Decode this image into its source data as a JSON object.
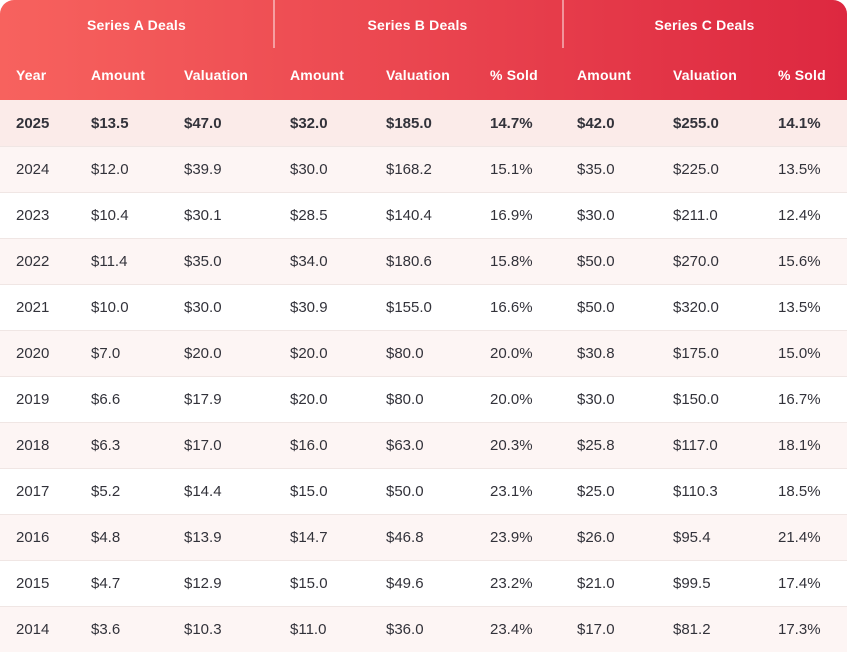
{
  "table": {
    "groups": [
      {
        "label": "Series A Deals"
      },
      {
        "label": "Series B Deals"
      },
      {
        "label": "Series C Deals"
      }
    ],
    "columns": [
      "Year",
      "Amount",
      "Valuation",
      "Amount",
      "Valuation",
      "% Sold",
      "Amount",
      "Valuation",
      "% Sold"
    ],
    "rows": [
      {
        "year": "2025",
        "highlighted": true,
        "cells": [
          "$13.5",
          "$47.0",
          "$32.0",
          "$185.0",
          "14.7%",
          "$42.0",
          "$255.0",
          "14.1%"
        ]
      },
      {
        "year": "2024",
        "highlighted": false,
        "cells": [
          "$12.0",
          "$39.9",
          "$30.0",
          "$168.2",
          "15.1%",
          "$35.0",
          "$225.0",
          "13.5%"
        ]
      },
      {
        "year": "2023",
        "highlighted": false,
        "cells": [
          "$10.4",
          "$30.1",
          "$28.5",
          "$140.4",
          "16.9%",
          "$30.0",
          "$211.0",
          "12.4%"
        ]
      },
      {
        "year": "2022",
        "highlighted": false,
        "cells": [
          "$11.4",
          "$35.0",
          "$34.0",
          "$180.6",
          "15.8%",
          "$50.0",
          "$270.0",
          "15.6%"
        ]
      },
      {
        "year": "2021",
        "highlighted": false,
        "cells": [
          "$10.0",
          "$30.0",
          "$30.9",
          "$155.0",
          "16.6%",
          "$50.0",
          "$320.0",
          "13.5%"
        ]
      },
      {
        "year": "2020",
        "highlighted": false,
        "cells": [
          "$7.0",
          "$20.0",
          "$20.0",
          "$80.0",
          "20.0%",
          "$30.8",
          "$175.0",
          "15.0%"
        ]
      },
      {
        "year": "2019",
        "highlighted": false,
        "cells": [
          "$6.6",
          "$17.9",
          "$20.0",
          "$80.0",
          "20.0%",
          "$30.0",
          "$150.0",
          "16.7%"
        ]
      },
      {
        "year": "2018",
        "highlighted": false,
        "cells": [
          "$6.3",
          "$17.0",
          "$16.0",
          "$63.0",
          "20.3%",
          "$25.8",
          "$117.0",
          "18.1%"
        ]
      },
      {
        "year": "2017",
        "highlighted": false,
        "cells": [
          "$5.2",
          "$14.4",
          "$15.0",
          "$50.0",
          "23.1%",
          "$25.0",
          "$110.3",
          "18.5%"
        ]
      },
      {
        "year": "2016",
        "highlighted": false,
        "cells": [
          "$4.8",
          "$13.9",
          "$14.7",
          "$46.8",
          "23.9%",
          "$26.0",
          "$95.4",
          "21.4%"
        ]
      },
      {
        "year": "2015",
        "highlighted": false,
        "cells": [
          "$4.7",
          "$12.9",
          "$15.0",
          "$49.6",
          "23.2%",
          "$21.0",
          "$99.5",
          "17.4%"
        ]
      },
      {
        "year": "2014",
        "highlighted": false,
        "cells": [
          "$3.6",
          "$10.3",
          "$11.0",
          "$36.0",
          "23.4%",
          "$17.0",
          "$81.2",
          "17.3%"
        ]
      }
    ],
    "colors": {
      "header_gradient_start": "#f7625e",
      "header_gradient_end": "#dd2840",
      "header_text": "#ffffff",
      "highlight_row_bg": "#fbebe9",
      "alt_row_bg": "#fdf5f4",
      "row_bg": "#ffffff",
      "cell_text": "#32323a"
    }
  }
}
